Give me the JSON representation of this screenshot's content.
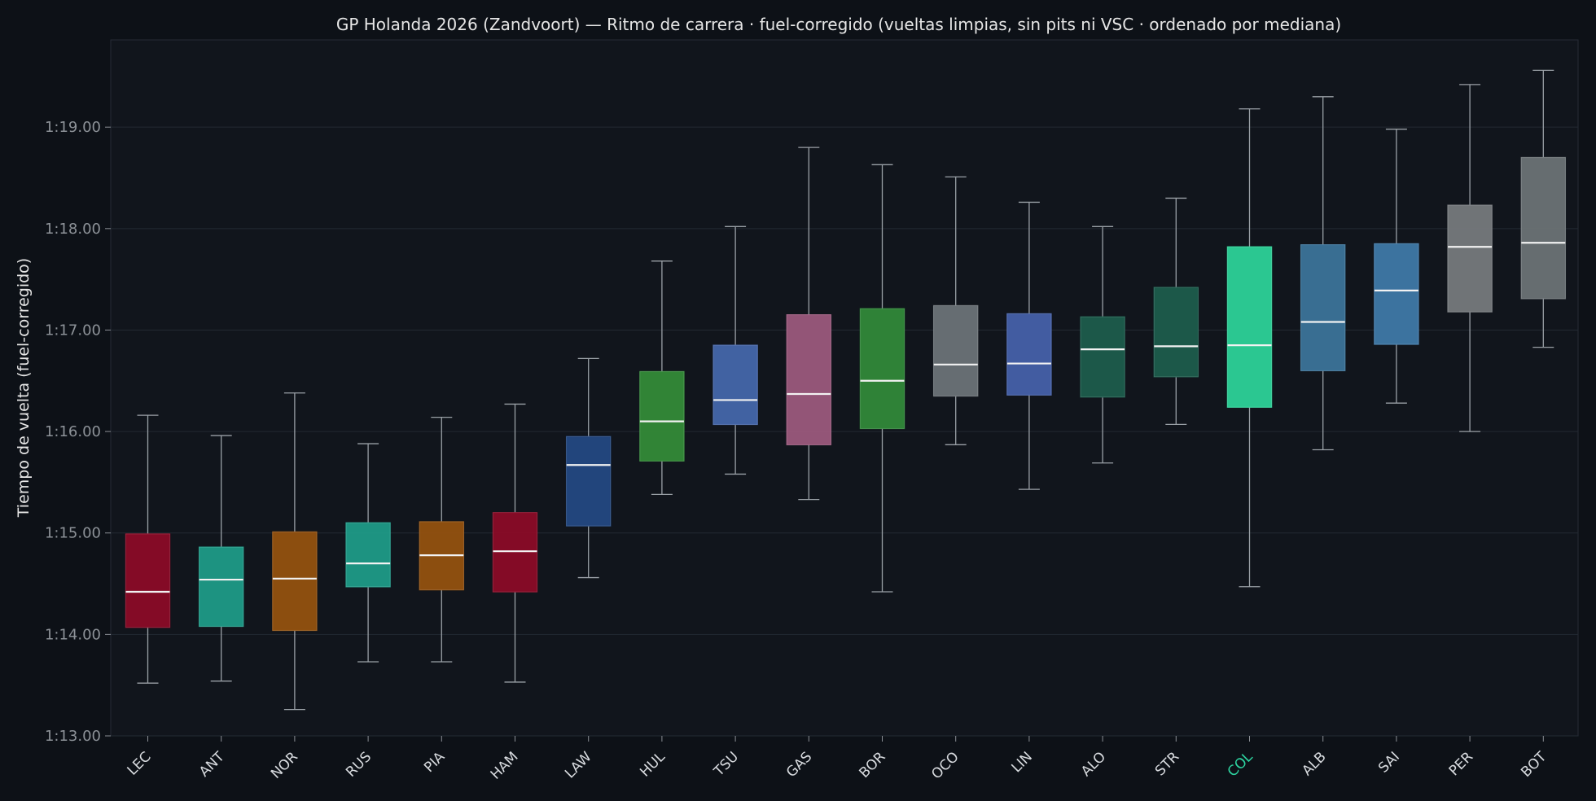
{
  "chart_data": {
    "type": "box",
    "title": "GP Holanda 2026 (Zandvoort) — Ritmo de carrera · fuel-corregido (vueltas limpias, sin pits ni VSC · ordenado por mediana)",
    "ylabel": "Tiempo de vuelta (fuel-corregido)",
    "xlabel": "",
    "ylim": [
      73.0,
      79.86
    ],
    "yticks": [
      73,
      74,
      75,
      76,
      77,
      78,
      79
    ],
    "ytick_labels": [
      "1:13.00",
      "1:14.00",
      "1:15.00",
      "1:16.00",
      "1:17.00",
      "1:18.00",
      "1:19.00"
    ],
    "grid": "horizontal",
    "highlight_category": "COL",
    "highlight_color": "#2dd4a0",
    "categories": [
      "LEC",
      "ANT",
      "NOR",
      "RUS",
      "PIA",
      "HAM",
      "LAW",
      "HUL",
      "TSU",
      "GAS",
      "BOR",
      "OCO",
      "LIN",
      "ALO",
      "STR",
      "COL",
      "ALB",
      "SAI",
      "PER",
      "BOT"
    ],
    "boxes": [
      {
        "label": "LEC",
        "whislo": 73.52,
        "q1": 74.07,
        "med": 74.42,
        "q3": 74.99,
        "whishi": 76.16,
        "color": "#8b0b27"
      },
      {
        "label": "ANT",
        "whislo": 73.54,
        "q1": 74.08,
        "med": 74.54,
        "q3": 74.86,
        "whishi": 75.96,
        "color": "#1f9a87"
      },
      {
        "label": "NOR",
        "whislo": 73.26,
        "q1": 74.04,
        "med": 74.55,
        "q3": 75.01,
        "whishi": 76.38,
        "color": "#93510f"
      },
      {
        "label": "RUS",
        "whislo": 73.73,
        "q1": 74.47,
        "med": 74.7,
        "q3": 75.1,
        "whishi": 75.88,
        "color": "#1f9a87"
      },
      {
        "label": "PIA",
        "whislo": 73.73,
        "q1": 74.44,
        "med": 74.78,
        "q3": 75.11,
        "whishi": 76.14,
        "color": "#93510f"
      },
      {
        "label": "HAM",
        "whislo": 73.53,
        "q1": 74.42,
        "med": 74.82,
        "q3": 75.2,
        "whishi": 76.27,
        "color": "#8b0b27"
      },
      {
        "label": "LAW",
        "whislo": 74.56,
        "q1": 75.07,
        "med": 75.67,
        "q3": 75.95,
        "whishi": 76.72,
        "color": "#244882"
      },
      {
        "label": "HUL",
        "whislo": 75.38,
        "q1": 75.71,
        "med": 76.1,
        "q3": 76.59,
        "whishi": 77.68,
        "color": "#348a38"
      },
      {
        "label": "TSU",
        "whislo": 75.58,
        "q1": 76.07,
        "med": 76.31,
        "q3": 76.85,
        "whishi": 78.02,
        "color": "#4566aa"
      },
      {
        "label": "GAS",
        "whislo": 75.33,
        "q1": 75.87,
        "med": 76.37,
        "q3": 77.15,
        "whishi": 78.8,
        "color": "#9b597c"
      },
      {
        "label": "BOR",
        "whislo": 74.42,
        "q1": 76.03,
        "med": 76.5,
        "q3": 77.21,
        "whishi": 78.63,
        "color": "#318839"
      },
      {
        "label": "OCO",
        "whislo": 75.87,
        "q1": 76.35,
        "med": 76.66,
        "q3": 77.24,
        "whishi": 78.51,
        "color": "#6c7277"
      },
      {
        "label": "LIN",
        "whislo": 75.43,
        "q1": 76.36,
        "med": 76.67,
        "q3": 77.16,
        "whishi": 78.26,
        "color": "#4660a9"
      },
      {
        "label": "ALO",
        "whislo": 75.69,
        "q1": 76.34,
        "med": 76.81,
        "q3": 77.13,
        "whishi": 78.02,
        "color": "#1d5c4c"
      },
      {
        "label": "STR",
        "whislo": 76.07,
        "q1": 76.54,
        "med": 76.84,
        "q3": 77.42,
        "whishi": 78.3,
        "color": "#1d5c4c"
      },
      {
        "label": "COL",
        "whislo": 74.47,
        "q1": 76.24,
        "med": 76.85,
        "q3": 77.82,
        "whishi": 79.18,
        "color": "#2dd198"
      },
      {
        "label": "ALB",
        "whislo": 75.82,
        "q1": 76.6,
        "med": 77.08,
        "q3": 77.84,
        "whishi": 79.3,
        "color": "#3c7399"
      },
      {
        "label": "SAI",
        "whislo": 76.28,
        "q1": 76.86,
        "med": 77.39,
        "q3": 77.85,
        "whishi": 78.98,
        "color": "#3f78a6"
      },
      {
        "label": "PER",
        "whislo": 76.0,
        "q1": 77.18,
        "med": 77.82,
        "q3": 78.23,
        "whishi": 79.42,
        "color": "#76797c"
      },
      {
        "label": "BOT",
        "whislo": 76.83,
        "q1": 77.31,
        "med": 77.86,
        "q3": 78.7,
        "whishi": 79.56,
        "color": "#6c7275"
      }
    ]
  }
}
